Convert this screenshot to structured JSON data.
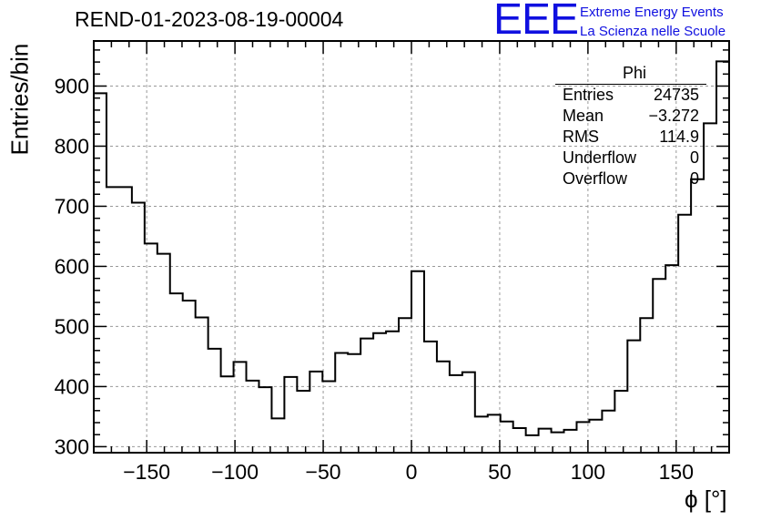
{
  "header": {
    "run_title": "REND-01-2023-08-19-00004",
    "logo_text": "EEE",
    "logo_line1": "Extreme Energy Events",
    "logo_line2": "La Scienza nelle Scuole",
    "logo_color": "#1010e0"
  },
  "stats": {
    "title": "Phi",
    "rows": [
      {
        "label": "Entries",
        "value": "24735"
      },
      {
        "label": "Mean",
        "value": "−3.272"
      },
      {
        "label": "RMS",
        "value": "114.9"
      },
      {
        "label": "Underflow",
        "value": "0"
      },
      {
        "label": "Overflow",
        "value": "0"
      }
    ]
  },
  "chart_data": {
    "type": "histogram",
    "title": "REND-01-2023-08-19-00004",
    "xlabel": "ϕ [°]",
    "ylabel": "Entries/bin",
    "xlim": [
      -180,
      180
    ],
    "ylim": [
      290,
      975
    ],
    "grid": true,
    "x_ticks": [
      -150,
      -100,
      -50,
      0,
      50,
      100,
      150
    ],
    "x_tick_labels": [
      "−150",
      "−100",
      "−50",
      "0",
      "50",
      "100",
      "150"
    ],
    "y_ticks": [
      300,
      400,
      500,
      600,
      700,
      800,
      900
    ],
    "bin_width": 7.2,
    "bin_edges_start": -180,
    "counts": [
      888,
      732,
      732,
      706,
      638,
      621,
      555,
      543,
      515,
      463,
      417,
      441,
      410,
      399,
      347,
      416,
      393,
      425,
      409,
      456,
      454,
      480,
      489,
      492,
      514,
      592,
      475,
      442,
      419,
      424,
      350,
      353,
      342,
      331,
      319,
      330,
      324,
      328,
      341,
      345,
      360,
      393,
      477,
      514,
      579,
      602,
      686,
      745,
      838,
      941
    ],
    "line_color": "#000000"
  }
}
